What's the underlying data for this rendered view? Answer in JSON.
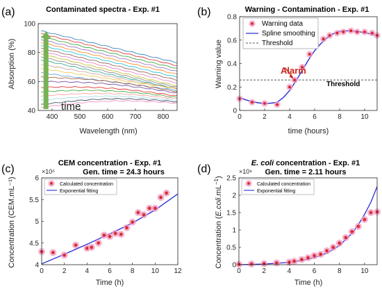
{
  "panel_labels": [
    "(a)",
    "(b)",
    "(c)",
    "(d)"
  ],
  "chart_data": [
    {
      "id": "a",
      "type": "line",
      "title": "Contaminated spectra - Exp. #1",
      "xlabel": "Wavelength (nm)",
      "ylabel": "Absorption (%)",
      "xlim": [
        350,
        850
      ],
      "ylim": [
        40,
        100
      ],
      "xticks": [
        400,
        500,
        600,
        700,
        800
      ],
      "yticks": [
        40,
        60,
        80,
        100
      ],
      "grid": false,
      "annotation": "time",
      "arrow_color": "#77b255",
      "series": [
        {
          "values": [
            [
              360,
              95
            ],
            [
              850,
              73
            ]
          ]
        },
        {
          "values": [
            [
              360,
              93
            ],
            [
              850,
              71
            ]
          ]
        },
        {
          "values": [
            [
              360,
              91
            ],
            [
              850,
              69
            ]
          ]
        },
        {
          "values": [
            [
              360,
              89
            ],
            [
              850,
              67
            ]
          ]
        },
        {
          "values": [
            [
              360,
              87
            ],
            [
              850,
              65
            ]
          ]
        },
        {
          "values": [
            [
              360,
              85
            ],
            [
              850,
              63
            ]
          ]
        },
        {
          "values": [
            [
              360,
              83
            ],
            [
              850,
              61
            ]
          ]
        },
        {
          "values": [
            [
              360,
              81
            ],
            [
              850,
              59
            ]
          ]
        },
        {
          "values": [
            [
              360,
              79
            ],
            [
              850,
              57
            ]
          ]
        },
        {
          "values": [
            [
              360,
              77
            ],
            [
              850,
              56
            ]
          ]
        },
        {
          "values": [
            [
              360,
              75
            ],
            [
              850,
              55
            ]
          ]
        },
        {
          "values": [
            [
              360,
              72
            ],
            [
              850,
              55
            ]
          ]
        },
        {
          "values": [
            [
              360,
              69
            ],
            [
              850,
              55
            ]
          ]
        },
        {
          "values": [
            [
              360,
              66
            ],
            [
              850,
              54
            ]
          ]
        },
        {
          "values": [
            [
              360,
              63
            ],
            [
              850,
              53
            ]
          ]
        },
        {
          "values": [
            [
              360,
              60
            ],
            [
              850,
              52
            ]
          ]
        },
        {
          "values": [
            [
              360,
              56
            ],
            [
              850,
              50
            ]
          ]
        },
        {
          "values": [
            [
              360,
              53
            ],
            [
              850,
              49
            ]
          ]
        },
        {
          "values": [
            [
              360,
              50
            ],
            [
              850,
              48
            ]
          ]
        },
        {
          "values": [
            [
              360,
              47
            ],
            [
              850,
              47
            ]
          ]
        },
        {
          "values": [
            [
              360,
              44
            ],
            [
              850,
              46
            ]
          ]
        },
        {
          "values": [
            [
              360,
              42
            ],
            [
              850,
              45
            ]
          ]
        }
      ],
      "series_colors": [
        "#1f77b4",
        "#d62728",
        "#2ca02c",
        "#9467bd",
        "#ff7f0e",
        "#17becf",
        "#8c564b",
        "#e377c2",
        "#bcbd22",
        "#7f7f7f",
        "#1f9e89",
        "#c49c94",
        "#f0c040",
        "#5b9bd5",
        "#a0522d",
        "#6a3d9a",
        "#e31a1c",
        "#33a02c",
        "#ff9896",
        "#9edae5",
        "#2c3e50",
        "#f781bf"
      ]
    },
    {
      "id": "b",
      "type": "line",
      "title": "Warning - Contamination - Exp. #1",
      "xlabel": "time (hours)",
      "ylabel": "Warning value",
      "xlim": [
        0,
        11
      ],
      "ylim": [
        0,
        0.8
      ],
      "xticks": [
        0,
        2,
        4,
        6,
        8,
        10
      ],
      "yticks": [
        0,
        0.2,
        0.4,
        0.6,
        0.8
      ],
      "grid": false,
      "legend": [
        {
          "label": "Warning data",
          "style": "marker"
        },
        {
          "label": "Spline smoothing",
          "style": "line"
        },
        {
          "label": "Threshold",
          "style": "dashed"
        }
      ],
      "legend_position": "top-left",
      "points": {
        "x": [
          0,
          1,
          2,
          3,
          4,
          4.4,
          5,
          5.6,
          6.1,
          6.7,
          7.2,
          7.8,
          8.3,
          8.9,
          9.4,
          10,
          10.6,
          11
        ],
        "y": [
          0.1,
          0.07,
          0.06,
          0.05,
          0.2,
          0.26,
          0.37,
          0.48,
          0.56,
          0.61,
          0.64,
          0.66,
          0.67,
          0.68,
          0.67,
          0.67,
          0.66,
          0.64
        ]
      },
      "spline": {
        "x": [
          0,
          0.5,
          1,
          1.5,
          2,
          2.5,
          3,
          3.5,
          4,
          4.5,
          5,
          5.5,
          6,
          6.5,
          7,
          7.5,
          8,
          8.5,
          9,
          9.5,
          10,
          10.5,
          11
        ],
        "y": [
          0.11,
          0.09,
          0.075,
          0.065,
          0.06,
          0.062,
          0.07,
          0.11,
          0.17,
          0.25,
          0.34,
          0.43,
          0.51,
          0.57,
          0.62,
          0.655,
          0.675,
          0.68,
          0.678,
          0.672,
          0.664,
          0.652,
          0.64
        ]
      },
      "threshold": 0.26,
      "alarm_at": [
        4.3,
        0.27
      ],
      "annotations": {
        "alarm": "Alarm",
        "threshold": "Threshold"
      }
    },
    {
      "id": "c",
      "type": "scatter",
      "title": "CEM concentration - Exp. #1",
      "subtitle": "Gen. time = 24.3 hours",
      "xlabel": "Time (h)",
      "ylabel": "Concentration (CEM.mL⁻¹)",
      "xlim": [
        0,
        12
      ],
      "ylim": [
        4,
        6
      ],
      "xticks": [
        0,
        2,
        4,
        6,
        8,
        10,
        12
      ],
      "yticks": [
        4,
        4.5,
        5,
        5.5,
        6
      ],
      "y_multiplier": "×10⁵",
      "grid": false,
      "legend": [
        {
          "label": "Calculated concentration",
          "style": "marker"
        },
        {
          "label": "Exponential fitting",
          "style": "line"
        }
      ],
      "legend_position": "top-left",
      "points": {
        "x": [
          0,
          1,
          2,
          3,
          4,
          4.4,
          5,
          5.5,
          6,
          6.5,
          7,
          7.5,
          8,
          8.5,
          9,
          9.5,
          10,
          10.5,
          11
        ],
        "y": [
          4.3,
          4.28,
          4.22,
          4.45,
          4.38,
          4.4,
          4.5,
          4.68,
          4.65,
          4.72,
          4.7,
          4.85,
          4.98,
          5.2,
          5.15,
          5.3,
          5.3,
          5.55,
          5.65
        ]
      },
      "fit": {
        "x": [
          0,
          2,
          4,
          6,
          8,
          10,
          12
        ],
        "y": [
          4.02,
          4.24,
          4.47,
          4.71,
          4.96,
          5.26,
          5.63
        ]
      }
    },
    {
      "id": "d",
      "type": "scatter",
      "title": "E. coli concentration - Exp. #1",
      "title_parts": [
        "E. coli",
        " concentration - Exp. #1"
      ],
      "subtitle": "Gen. time = 2.11 hours",
      "xlabel": "Time (h)",
      "ylabel": "Concentration (E.coli.mL⁻¹)",
      "ylabel_parts": [
        "Concentration (",
        "E.coli",
        ".mL",
        "−1",
        ")"
      ],
      "xlim": [
        0,
        11
      ],
      "ylim": [
        0,
        2.5
      ],
      "xticks": [
        0,
        2,
        4,
        6,
        8,
        10
      ],
      "yticks": [
        0,
        0.5,
        1,
        1.5,
        2,
        2.5
      ],
      "y_multiplier": "×10⁸",
      "grid": false,
      "legend": [
        {
          "label": "Calculated concentration",
          "style": "marker"
        },
        {
          "label": "Exponential fitting",
          "style": "line"
        }
      ],
      "legend_position": "top-left",
      "points": {
        "x": [
          0,
          1,
          2,
          3,
          4,
          4.4,
          5,
          5.5,
          6,
          6.5,
          7,
          7.5,
          8,
          8.5,
          9,
          9.5,
          10,
          10.5,
          11
        ],
        "y": [
          0.01,
          0.02,
          0.03,
          0.05,
          0.07,
          0.1,
          0.15,
          0.2,
          0.26,
          0.3,
          0.4,
          0.5,
          0.62,
          0.78,
          0.95,
          1.1,
          1.3,
          1.5,
          1.52
        ]
      },
      "fit": {
        "x": [
          0,
          1,
          2,
          3,
          4,
          5,
          6,
          7,
          8,
          9,
          9.5,
          10,
          10.5,
          11
        ],
        "y": [
          0.0,
          0.01,
          0.02,
          0.04,
          0.07,
          0.12,
          0.2,
          0.33,
          0.55,
          0.9,
          1.15,
          1.45,
          1.8,
          2.25
        ]
      }
    }
  ],
  "colors": {
    "marker": "#d62728",
    "marker_halo": "#f0a0c8",
    "line": "#2a2ad6",
    "threshold": "#555555",
    "alarm": "#c8281e",
    "arrow": "#77b255"
  }
}
